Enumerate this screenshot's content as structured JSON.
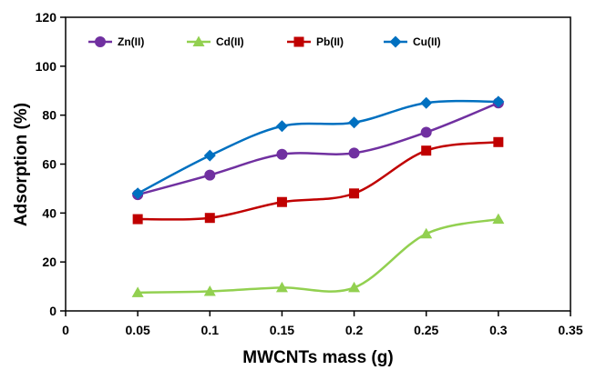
{
  "chart_data": {
    "type": "line",
    "xlabel": "MWCNTs mass (g)",
    "ylabel": "Adsorption (%)",
    "xlim": [
      0,
      0.35
    ],
    "ylim": [
      0,
      120
    ],
    "x_ticks": [
      "0",
      "0.05",
      "0.1",
      "0.15",
      "0.2",
      "0.25",
      "0.3",
      "0.35"
    ],
    "y_ticks": [
      "0",
      "20",
      "40",
      "60",
      "80",
      "100",
      "120"
    ],
    "x": [
      0.05,
      0.1,
      0.15,
      0.2,
      0.25,
      0.3
    ],
    "legend_position": "top-left",
    "grid": false,
    "series": [
      {
        "name": "Zn(II)",
        "color": "#7030A0",
        "marker": "circle",
        "values": [
          47.5,
          55.5,
          64,
          64.5,
          73,
          85
        ]
      },
      {
        "name": "Cd(II)",
        "color": "#92D050",
        "marker": "triangle",
        "values": [
          7.5,
          8,
          9.5,
          9.5,
          31.5,
          37.5
        ]
      },
      {
        "name": "Pb(II)",
        "color": "#C00000",
        "marker": "square",
        "values": [
          37.5,
          38,
          44.5,
          48,
          65.5,
          69
        ]
      },
      {
        "name": "Cu(II)",
        "color": "#0070C0",
        "marker": "diamond",
        "values": [
          48,
          63.5,
          75.5,
          77,
          85,
          85.5
        ]
      }
    ]
  }
}
